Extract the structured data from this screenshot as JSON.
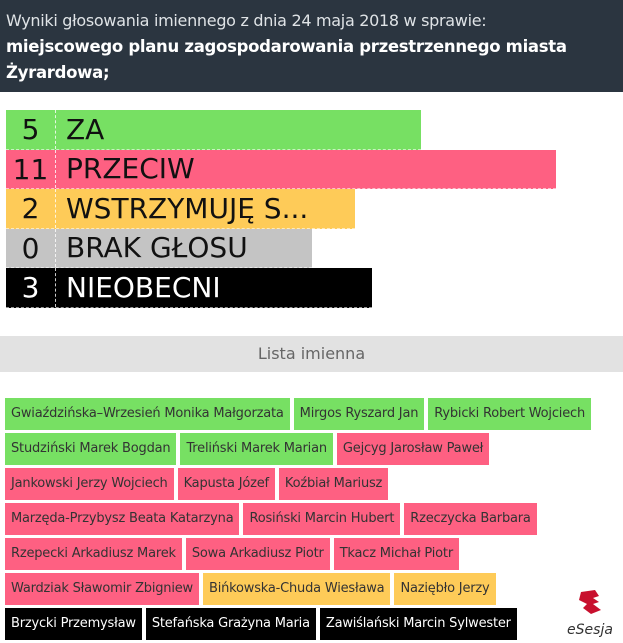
{
  "header": {
    "line1": "Wyniki głosowania imiennego z dnia 24 maja 2018 w sprawie:",
    "line2": "miejscowego planu zagospodarowania przestrzennego miasta",
    "line3": "Żyrardowa;"
  },
  "results": [
    {
      "count": "5",
      "label": "ZA",
      "color": "#77e063",
      "text_color": "#111"
    },
    {
      "count": "11",
      "label": "PRZECIW",
      "color": "#fe6082",
      "text_color": "#111"
    },
    {
      "count": "2",
      "label": "WSTRZYMUJĘ S...",
      "color": "#fecb58",
      "text_color": "#111"
    },
    {
      "count": "0",
      "label": "BRAK GŁOSU",
      "color": "#c4c4c4",
      "text_color": "#111"
    },
    {
      "count": "3",
      "label": "NIEOBECNI",
      "color": "#000000",
      "text_color": "#fff"
    }
  ],
  "list_title": "Lista imienna",
  "names": [
    [
      {
        "name": "Gwiaździńska–Wrzesień Monika Małgorzata",
        "vote": "za"
      },
      {
        "name": "Mirgos Ryszard Jan",
        "vote": "za"
      },
      {
        "name": "Rybicki Robert Wojciech",
        "vote": "za"
      }
    ],
    [
      {
        "name": "Studziński Marek Bogdan",
        "vote": "za"
      },
      {
        "name": "Treliński Marek Marian",
        "vote": "za"
      },
      {
        "name": "Gejcyg Jarosław Paweł",
        "vote": "przeciw"
      }
    ],
    [
      {
        "name": "Jankowski Jerzy Wojciech",
        "vote": "przeciw"
      },
      {
        "name": "Kapusta Józef",
        "vote": "przeciw"
      },
      {
        "name": "Koźbiał Mariusz",
        "vote": "przeciw"
      }
    ],
    [
      {
        "name": "Marzęda-Przybysz Beata Katarzyna",
        "vote": "przeciw"
      },
      {
        "name": "Rosiński Marcin Hubert",
        "vote": "przeciw"
      },
      {
        "name": "Rzeczycka Barbara",
        "vote": "przeciw"
      }
    ],
    [
      {
        "name": "Rzepecki Arkadiusz Marek",
        "vote": "przeciw"
      },
      {
        "name": "Sowa Arkadiusz Piotr",
        "vote": "przeciw"
      },
      {
        "name": "Tkacz Michał Piotr",
        "vote": "przeciw"
      }
    ],
    [
      {
        "name": "Wardziak Sławomir Zbigniew",
        "vote": "przeciw"
      },
      {
        "name": "Bińkowska-Chuda Wiesława",
        "vote": "wstrzymuje"
      },
      {
        "name": "Naziębło Jerzy",
        "vote": "wstrzymuje"
      }
    ],
    [
      {
        "name": "Brzycki Przemysław",
        "vote": "nieobecni"
      },
      {
        "name": "Stefańska Grażyna Maria",
        "vote": "nieobecni"
      },
      {
        "name": "Zawiślański Marcin Sylwester",
        "vote": "nieobecni"
      }
    ]
  ],
  "vote_colors": {
    "za": "#77e063",
    "przeciw": "#fe6082",
    "wstrzymuje": "#fecb58",
    "nieobecni": "#000000"
  },
  "logo": {
    "text": "eSesja",
    "color": "#c8102e"
  }
}
